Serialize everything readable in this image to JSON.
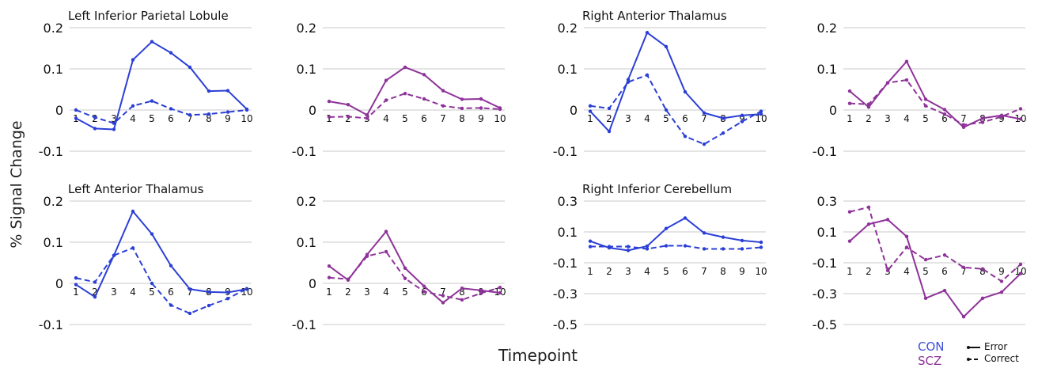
{
  "figure": {
    "ylabel": "% Signal Change",
    "xlabel": "Timepoint"
  },
  "legend": {
    "groups": [
      {
        "name": "CON",
        "color": "#3f4fd6"
      },
      {
        "name": "SCZ",
        "color": "#8e3399"
      }
    ],
    "styles": [
      {
        "name": "Error",
        "dash": "solid"
      },
      {
        "name": "Correct",
        "dash": "dashed"
      }
    ]
  },
  "chart_data": [
    {
      "type": "line",
      "title": "Left Inferior Parietal Lobule",
      "group": "CON",
      "color": "#2b3fd6",
      "x": [
        1,
        2,
        3,
        4,
        5,
        6,
        7,
        8,
        9,
        10
      ],
      "ylim": [
        -0.1,
        0.2
      ],
      "yticks": [
        -0.1,
        0,
        0.1,
        0.2
      ],
      "ytick_labels": [
        "-0.1",
        "0",
        "0.1",
        "0.2"
      ],
      "series": [
        {
          "name": "Error",
          "dash": "solid",
          "values": [
            -0.02,
            -0.045,
            -0.047,
            0.122,
            0.166,
            0.139,
            0.104,
            0.046,
            0.047,
            0.002
          ]
        },
        {
          "name": "Correct",
          "dash": "dashed",
          "values": [
            0.0,
            -0.018,
            -0.032,
            0.01,
            0.022,
            0.003,
            -0.012,
            -0.01,
            -0.005,
            0.0
          ]
        }
      ]
    },
    {
      "type": "line",
      "title": "",
      "group": "SCZ",
      "color": "#8e3399",
      "x": [
        1,
        2,
        3,
        4,
        5,
        6,
        7,
        8,
        9,
        10
      ],
      "ylim": [
        -0.1,
        0.2
      ],
      "yticks": [
        -0.1,
        0,
        0.1,
        0.2
      ],
      "ytick_labels": [
        "-0.1",
        "0",
        "0.1",
        "0.2"
      ],
      "series": [
        {
          "name": "Error",
          "dash": "solid",
          "values": [
            0.021,
            0.013,
            -0.012,
            0.072,
            0.104,
            0.086,
            0.047,
            0.026,
            0.027,
            0.005
          ]
        },
        {
          "name": "Correct",
          "dash": "dashed",
          "values": [
            -0.017,
            -0.016,
            -0.02,
            0.024,
            0.04,
            0.027,
            0.01,
            0.004,
            0.005,
            0.002
          ]
        }
      ]
    },
    {
      "type": "line",
      "title": "Right Anterior Thalamus",
      "group": "CON",
      "color": "#2b3fd6",
      "x": [
        1,
        2,
        3,
        4,
        5,
        6,
        7,
        8,
        9,
        10
      ],
      "ylim": [
        -0.1,
        0.2
      ],
      "yticks": [
        -0.1,
        0,
        0.1,
        0.2
      ],
      "ytick_labels": [
        "-0.1",
        "0",
        "0.1",
        "0.2"
      ],
      "series": [
        {
          "name": "Error",
          "dash": "solid",
          "values": [
            -0.003,
            -0.052,
            0.074,
            0.188,
            0.154,
            0.044,
            -0.007,
            -0.02,
            -0.013,
            -0.01
          ]
        },
        {
          "name": "Correct",
          "dash": "dashed",
          "values": [
            0.01,
            0.004,
            0.068,
            0.085,
            0.0,
            -0.064,
            -0.083,
            -0.056,
            -0.028,
            -0.003
          ]
        }
      ]
    },
    {
      "type": "line",
      "title": "",
      "group": "SCZ",
      "color": "#8e3399",
      "x": [
        1,
        2,
        3,
        4,
        5,
        6,
        7,
        8,
        9,
        10
      ],
      "ylim": [
        -0.1,
        0.2
      ],
      "yticks": [
        -0.1,
        0,
        0.1,
        0.2
      ],
      "ytick_labels": [
        "-0.1",
        "0",
        "0.1",
        "0.2"
      ],
      "series": [
        {
          "name": "Error",
          "dash": "solid",
          "values": [
            0.046,
            0.007,
            0.066,
            0.118,
            0.026,
            0.001,
            -0.042,
            -0.02,
            -0.013,
            -0.022
          ]
        },
        {
          "name": "Correct",
          "dash": "dashed",
          "values": [
            0.016,
            0.014,
            0.066,
            0.073,
            0.01,
            -0.01,
            -0.036,
            -0.03,
            -0.016,
            0.003
          ]
        }
      ]
    },
    {
      "type": "line",
      "title": "Left Anterior Thalamus",
      "group": "CON",
      "color": "#2b3fd6",
      "x": [
        1,
        2,
        3,
        4,
        5,
        6,
        7,
        8,
        9,
        10
      ],
      "ylim": [
        -0.1,
        0.2
      ],
      "yticks": [
        -0.1,
        0,
        0.1,
        0.2
      ],
      "ytick_labels": [
        "-0.1",
        "0",
        "0.1",
        "0.2"
      ],
      "series": [
        {
          "name": "Error",
          "dash": "solid",
          "values": [
            -0.003,
            -0.033,
            0.068,
            0.175,
            0.12,
            0.043,
            -0.014,
            -0.021,
            -0.022,
            -0.014
          ]
        },
        {
          "name": "Correct",
          "dash": "dashed",
          "values": [
            0.013,
            0.003,
            0.068,
            0.086,
            0.0,
            -0.053,
            -0.073,
            -0.054,
            -0.037,
            -0.013
          ]
        }
      ]
    },
    {
      "type": "line",
      "title": "",
      "group": "SCZ",
      "color": "#8e3399",
      "x": [
        1,
        2,
        3,
        4,
        5,
        6,
        7,
        8,
        9,
        10
      ],
      "ylim": [
        -0.1,
        0.2
      ],
      "yticks": [
        -0.1,
        0,
        0.1,
        0.2
      ],
      "ytick_labels": [
        "-0.1",
        "0",
        "0.1",
        "0.2"
      ],
      "series": [
        {
          "name": "Error",
          "dash": "solid",
          "values": [
            0.042,
            0.008,
            0.07,
            0.126,
            0.037,
            -0.007,
            -0.047,
            -0.012,
            -0.017,
            -0.023
          ]
        },
        {
          "name": "Correct",
          "dash": "dashed",
          "values": [
            0.014,
            0.01,
            0.066,
            0.077,
            0.012,
            -0.02,
            -0.03,
            -0.04,
            -0.024,
            -0.01
          ]
        }
      ]
    },
    {
      "type": "line",
      "title": "Right Inferior Cerebellum",
      "group": "CON",
      "color": "#2b3fd6",
      "x": [
        1,
        2,
        3,
        4,
        5,
        6,
        7,
        8,
        9,
        10
      ],
      "ylim": [
        -0.5,
        0.3
      ],
      "yticks": [
        -0.5,
        -0.3,
        -0.1,
        0.1,
        0.3
      ],
      "ytick_labels": [
        "-0.5",
        "-0.3",
        "-0.1",
        "0.1",
        "0.3"
      ],
      "series": [
        {
          "name": "Error",
          "dash": "solid",
          "values": [
            0.04,
            -0.003,
            -0.02,
            0.008,
            0.122,
            0.19,
            0.093,
            0.066,
            0.044,
            0.033
          ]
        },
        {
          "name": "Correct",
          "dash": "dashed",
          "values": [
            0.005,
            0.005,
            0.005,
            -0.01,
            0.01,
            0.01,
            -0.01,
            -0.01,
            -0.01,
            0.0
          ]
        }
      ]
    },
    {
      "type": "line",
      "title": "",
      "group": "SCZ",
      "color": "#8e3399",
      "x": [
        1,
        2,
        3,
        4,
        5,
        6,
        7,
        8,
        9,
        10
      ],
      "ylim": [
        -0.5,
        0.3
      ],
      "yticks": [
        -0.5,
        -0.3,
        -0.1,
        0.1,
        0.3
      ],
      "ytick_labels": [
        "-0.5",
        "-0.3",
        "-0.1",
        "0.1",
        "0.3"
      ],
      "series": [
        {
          "name": "Error",
          "dash": "solid",
          "values": [
            0.04,
            0.15,
            0.18,
            0.07,
            -0.33,
            -0.28,
            -0.45,
            -0.33,
            -0.29,
            -0.17
          ]
        },
        {
          "name": "Correct",
          "dash": "dashed",
          "values": [
            0.23,
            0.26,
            -0.15,
            0.0,
            -0.08,
            -0.05,
            -0.13,
            -0.14,
            -0.22,
            -0.11
          ]
        }
      ]
    }
  ]
}
